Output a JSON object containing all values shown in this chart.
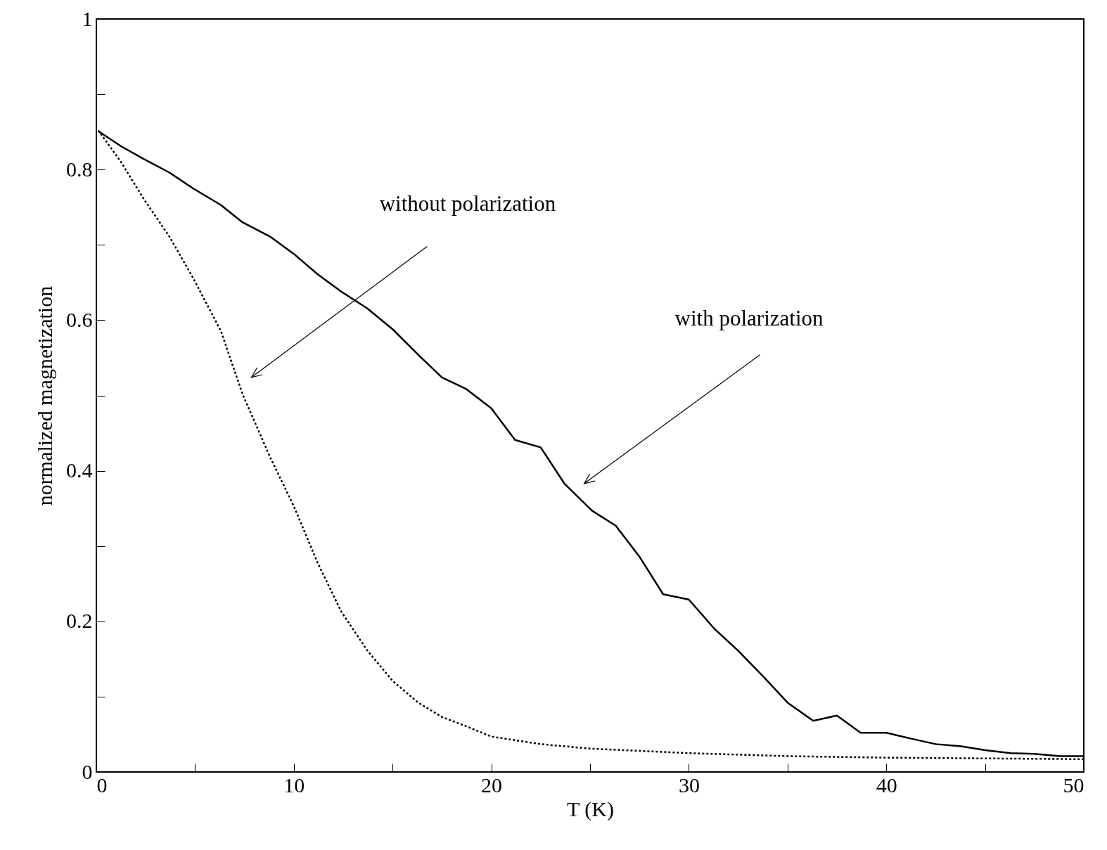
{
  "chart_data": {
    "type": "line",
    "xlabel": "T (K)",
    "ylabel": "normalized magnetization",
    "xlim": [
      0,
      50
    ],
    "ylim": [
      0,
      1
    ],
    "xticks": [
      0,
      {
        "value": 5,
        "label": null
      },
      10,
      {
        "value": 15,
        "label": null
      },
      20,
      {
        "value": 25,
        "label": null
      },
      30,
      {
        "value": 35,
        "label": null
      },
      40,
      {
        "value": 45,
        "label": null
      },
      50
    ],
    "yticks": [
      0,
      {
        "value": 0.1,
        "label": null
      },
      0.2,
      {
        "value": 0.3,
        "label": null
      },
      0.4,
      {
        "value": 0.5,
        "label": null
      },
      0.6,
      {
        "value": 0.7,
        "label": null
      },
      0.8,
      {
        "value": 0.9,
        "label": null
      },
      1
    ],
    "marker": "none",
    "series": [
      {
        "color": "#000000",
        "line_style": "solid",
        "x": [
          0.1,
          1.25,
          2.4,
          3.7,
          4.9,
          6.3,
          7.4,
          8.8,
          10,
          11.2,
          12.4,
          13.7,
          15,
          16.3,
          17.5,
          18.7,
          20,
          21.2,
          22.5,
          23.7,
          25.1,
          26.3,
          27.5,
          28.7,
          30,
          31.3,
          32.5,
          33.8,
          35,
          36.3,
          37.5,
          38.7,
          40,
          41.3,
          42.5,
          43.8,
          45,
          46.3,
          47.5,
          48.8,
          50
        ],
        "values": [
          0.851,
          0.831,
          0.814,
          0.796,
          0.775,
          0.753,
          0.73,
          0.711,
          0.688,
          0.661,
          0.638,
          0.616,
          0.588,
          0.554,
          0.524,
          0.509,
          0.483,
          0.441,
          0.431,
          0.383,
          0.347,
          0.327,
          0.286,
          0.236,
          0.229,
          0.19,
          0.161,
          0.126,
          0.092,
          0.068,
          0.075,
          0.052,
          0.052,
          0.044,
          0.037,
          0.034,
          0.029,
          0.025,
          0.024,
          0.021,
          0.021
        ]
      },
      {
        "color": "#000000",
        "line_style": "dotted",
        "x": [
          0.1,
          1.25,
          2.4,
          3.7,
          4.9,
          6.3,
          7.4,
          8.8,
          10,
          11.2,
          12.4,
          13.7,
          15,
          16.3,
          17.5,
          18.7,
          20,
          22.5,
          25,
          30,
          35,
          40,
          50
        ],
        "values": [
          0.852,
          0.81,
          0.761,
          0.711,
          0.656,
          0.586,
          0.502,
          0.418,
          0.353,
          0.278,
          0.213,
          0.162,
          0.121,
          0.092,
          0.073,
          0.061,
          0.047,
          0.037,
          0.031,
          0.025,
          0.021,
          0.019,
          0.017
        ]
      }
    ],
    "annotations": [
      "without polarization",
      "with polarization"
    ]
  }
}
